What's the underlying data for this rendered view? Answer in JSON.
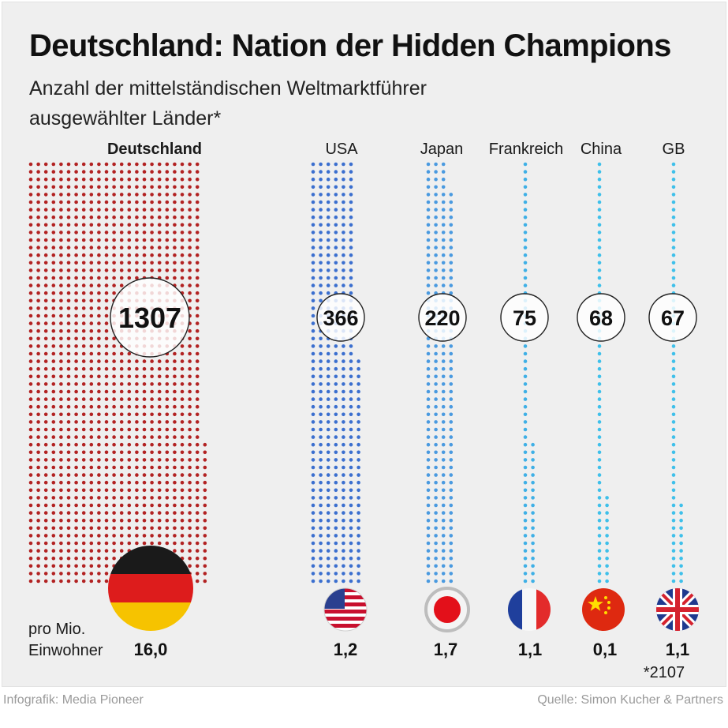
{
  "header": {
    "title": "Deutschland: Nation der Hidden Champions",
    "subtitle": "Anzahl der mittelständischen Weltmarktführer ausgewählter Länder*"
  },
  "chart_data": {
    "type": "bar",
    "categories": [
      "Deutschland",
      "USA",
      "Japan",
      "Frankreich",
      "China",
      "GB"
    ],
    "series": [
      {
        "values": [
          1307,
          366,
          220,
          75,
          68,
          67
        ]
      }
    ],
    "per_million": {
      "label": "pro Mio. Einwohner",
      "values": [
        "16,0",
        "1,2",
        "1,7",
        "1,1",
        "0,1",
        "1,1"
      ]
    },
    "footnote": "*2107",
    "colors": [
      "#b22222",
      "#3b6fcf",
      "#4a9ae0",
      "#3fb0e6",
      "#3fc0ea",
      "#3fc0ea"
    ],
    "flags": [
      "flag-germany-icon",
      "flag-usa-icon",
      "flag-japan-icon",
      "flag-france-icon",
      "flag-china-icon",
      "flag-uk-icon"
    ]
  },
  "footer": {
    "credit": "Infografik: Media Pioneer",
    "source": "Quelle: Simon Kucher & Partners"
  }
}
